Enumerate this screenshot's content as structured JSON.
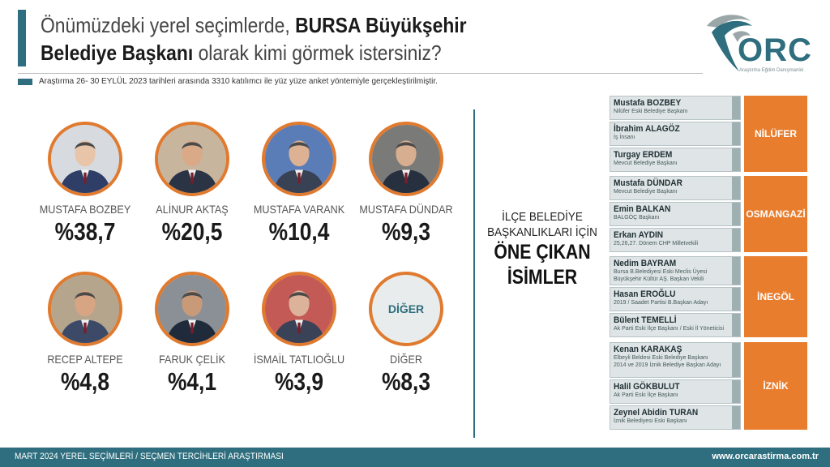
{
  "header": {
    "title_part1": "Önümüzdeki yerel seçimlerde, ",
    "title_bold1": "BURSA Büyükşehir",
    "title_bold2": "Belediye Başkanı",
    "title_part2": " olarak kimi görmek istersiniz?",
    "subtitle": "Araştırma 26- 30 EYLÜL 2023 tarihleri arasında 3310 katılımcı ile yüz yüze anket yöntemiyle gerçekleştirilmiştir."
  },
  "logo": {
    "text": "ORC",
    "tagline": "Araştırma Eğitim Danışmanlık"
  },
  "middle": {
    "line1": "İLÇE BELEDİYE",
    "line2": "BAŞKANLIKLARI İÇİN",
    "line3": "ÖNE ÇIKAN",
    "line4": "İSİMLER"
  },
  "chart_data": {
    "type": "bar",
    "title": "Önümüzdeki yerel seçimlerde, BURSA Büyükşehir Belediye Başkanı olarak kimi görmek istersiniz?",
    "categories": [
      "MUSTAFA BOZBEY",
      "ALİNUR AKTAŞ",
      "MUSTAFA VARANK",
      "MUSTAFA DÜNDAR",
      "RECEP ALTEPE",
      "FARUK ÇELİK",
      "İSMAİL TATLIOĞLU",
      "DİĞER"
    ],
    "values": [
      38.7,
      20.5,
      10.4,
      9.3,
      4.8,
      4.1,
      3.9,
      8.3
    ],
    "labels": [
      "%38,7",
      "%20,5",
      "%10,4",
      "%9,3",
      "%4,8",
      "%4,1",
      "%3,9",
      "%8,3"
    ],
    "other_badge": "DİĞER"
  },
  "districts": [
    {
      "name": "NİLÜFER",
      "people": [
        {
          "name": "Mustafa BOZBEY",
          "desc": [
            "Nilüfer Eski Belediye Başkanı"
          ]
        },
        {
          "name": "İbrahim ALAGÖZ",
          "desc": [
            "İş İnsanı"
          ]
        },
        {
          "name": "Turgay ERDEM",
          "desc": [
            "Mevcut Belediye Başkanı"
          ]
        }
      ]
    },
    {
      "name": "OSMANGAZİ",
      "people": [
        {
          "name": "Mustafa DÜNDAR",
          "desc": [
            "Mevcut Belediye Başkanı"
          ]
        },
        {
          "name": "Emin BALKAN",
          "desc": [
            "BALGÖÇ Başkanı"
          ]
        },
        {
          "name": "Erkan AYDIN",
          "desc": [
            "25,26,27. Dönem CHP Milletvekili"
          ]
        }
      ]
    },
    {
      "name": "İNEGÖL",
      "people": [
        {
          "name": "Nedim BAYRAM",
          "desc": [
            "Bursa B.Belediyesi Eski Meclis Üyesi",
            "Büyükşehir Kültür AŞ. Başkan Vekili"
          ]
        },
        {
          "name": "Hasan EROĞLU",
          "desc": [
            "2019 / Saadet Partisi B.Başkan Adayı"
          ]
        },
        {
          "name": "Bülent TEMELLİ",
          "desc": [
            "Ak Parti Eski İlçe Başkanı / Eski İl Yöneticisi"
          ]
        }
      ]
    },
    {
      "name": "İZNİK",
      "people": [
        {
          "name": "Kenan KARAKAŞ",
          "desc": [
            "Elbeyli Beldesi Eski Belediye Başkanı",
            "2014 ve 2019 İznik Belediye Başkan Adayı"
          ]
        },
        {
          "name": "Halil GÖKBULUT",
          "desc": [
            "Ak Parti Eski İlçe Başkanı"
          ]
        },
        {
          "name": "Zeynel Abidin TURAN",
          "desc": [
            "İznik Belediyesi Eski Başkanı"
          ]
        }
      ]
    }
  ],
  "footer": {
    "left": "MART 2024 YEREL SEÇİMLERİ / SEÇMEN TERCİHLERİ ARAŞTIRMASI",
    "right": "www.orcarastirma.com.tr"
  },
  "colors": {
    "teal": "#2e6e7e",
    "orange": "#e87d2e",
    "ring": "#e07a2f"
  }
}
